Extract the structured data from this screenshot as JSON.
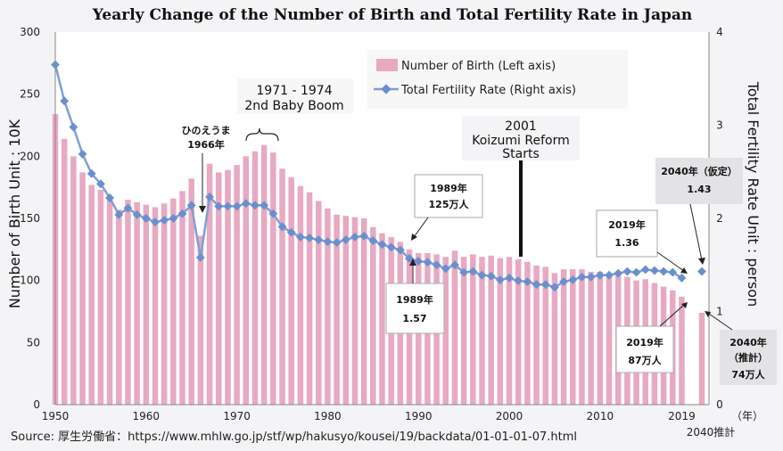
{
  "title": "Yearly Change of the Number of Birth and Total Fertility Rate in Japan",
  "source": "Source: 厚生労働省：https://www.mhlw.go.jp/stf/wp/hakusyo/kousei/19/backdata/01-01-01-07.html",
  "year_unit": "（年）",
  "legend": {
    "births": "Number of Birth (Left axis)",
    "tfr": "Total Fertility Rate (Right axis)"
  },
  "annotations": {
    "hinoeuma_1": "ひのえうま",
    "hinoeuma_2": "1966年",
    "boom_1": "1971 - 1974",
    "boom_2": "2nd Baby Boom",
    "koizumi_1": "2001",
    "koizumi_2": "Koizumi Reform",
    "koizumi_3": "Starts",
    "b1989_1": "1989年",
    "b1989_2": "125万人",
    "t1989_1": "1989年",
    "t1989_2": "1.57",
    "t2019_1": "2019年",
    "t2019_2": "1.36",
    "b2019_1": "2019年",
    "b2019_2": "87万人",
    "t2040_1": "2040年（仮定）",
    "t2040_2": "1.43",
    "b2040_1": "2040年",
    "b2040_2": "（推計）",
    "b2040_3": "74万人"
  },
  "chart_data": {
    "type": "bar",
    "xlabel": "",
    "ylabel": "Number of Birth  Unit : 10K",
    "y2label": "Total Fertility Rate  Unit : person",
    "ylim": [
      0,
      300
    ],
    "y2lim": [
      0,
      4
    ],
    "yticks": [
      0,
      50,
      100,
      150,
      200,
      250,
      300
    ],
    "y2ticks": [
      0,
      1,
      2,
      3,
      4
    ],
    "xticks": [
      "1950",
      "1960",
      "1970",
      "1980",
      "1990",
      "2000",
      "2010",
      "2019"
    ],
    "xtick_extra": "2040推計",
    "grid": false,
    "legend_position": "top-right",
    "colors": {
      "births": "#e8a9c2",
      "tfr": "#7f9fd2",
      "tfr_marker": "#6a8fcf"
    },
    "series": [
      {
        "name": "Number of Birth (Left axis)",
        "kind": "bar",
        "axis": "left",
        "x": [
          1950,
          1951,
          1952,
          1953,
          1954,
          1955,
          1956,
          1957,
          1958,
          1959,
          1960,
          1961,
          1962,
          1963,
          1964,
          1965,
          1966,
          1967,
          1968,
          1969,
          1970,
          1971,
          1972,
          1973,
          1974,
          1975,
          1976,
          1977,
          1978,
          1979,
          1980,
          1981,
          1982,
          1983,
          1984,
          1985,
          1986,
          1987,
          1988,
          1989,
          1990,
          1991,
          1992,
          1993,
          1994,
          1995,
          1996,
          1997,
          1998,
          1999,
          2000,
          2001,
          2002,
          2003,
          2004,
          2005,
          2006,
          2007,
          2008,
          2009,
          2010,
          2011,
          2012,
          2013,
          2014,
          2015,
          2016,
          2017,
          2018,
          2019,
          2040
        ],
        "values": [
          234,
          214,
          200,
          187,
          177,
          173,
          166,
          157,
          165,
          163,
          161,
          159,
          162,
          166,
          172,
          182,
          136,
          194,
          187,
          189,
          193,
          200,
          204,
          209,
          203,
          190,
          183,
          176,
          171,
          164,
          158,
          153,
          152,
          151,
          150,
          143,
          138,
          135,
          131,
          125,
          122,
          122,
          121,
          119,
          124,
          119,
          121,
          119,
          120,
          118,
          119,
          117,
          115,
          112,
          111,
          106,
          109,
          109,
          109,
          107,
          107,
          105,
          104,
          103,
          100,
          101,
          98,
          95,
          92,
          87,
          74
        ]
      },
      {
        "name": "Total Fertility Rate (Right axis)",
        "kind": "line",
        "axis": "right",
        "x": [
          1950,
          1951,
          1952,
          1953,
          1954,
          1955,
          1956,
          1957,
          1958,
          1959,
          1960,
          1961,
          1962,
          1963,
          1964,
          1965,
          1966,
          1967,
          1968,
          1969,
          1970,
          1971,
          1972,
          1973,
          1974,
          1975,
          1976,
          1977,
          1978,
          1979,
          1980,
          1981,
          1982,
          1983,
          1984,
          1985,
          1986,
          1987,
          1988,
          1989,
          1990,
          1991,
          1992,
          1993,
          1994,
          1995,
          1996,
          1997,
          1998,
          1999,
          2000,
          2001,
          2002,
          2003,
          2004,
          2005,
          2006,
          2007,
          2008,
          2009,
          2010,
          2011,
          2012,
          2013,
          2014,
          2015,
          2016,
          2017,
          2018,
          2019,
          2040
        ],
        "values": [
          3.65,
          3.26,
          2.98,
          2.69,
          2.48,
          2.37,
          2.22,
          2.04,
          2.11,
          2.04,
          2.0,
          1.96,
          1.98,
          2.0,
          2.05,
          2.14,
          1.58,
          2.23,
          2.13,
          2.13,
          2.13,
          2.16,
          2.14,
          2.14,
          2.05,
          1.91,
          1.85,
          1.8,
          1.79,
          1.77,
          1.75,
          1.74,
          1.77,
          1.8,
          1.81,
          1.76,
          1.72,
          1.69,
          1.66,
          1.57,
          1.54,
          1.53,
          1.5,
          1.46,
          1.5,
          1.42,
          1.43,
          1.39,
          1.38,
          1.34,
          1.36,
          1.33,
          1.32,
          1.29,
          1.29,
          1.26,
          1.32,
          1.34,
          1.37,
          1.37,
          1.39,
          1.39,
          1.41,
          1.43,
          1.42,
          1.45,
          1.44,
          1.43,
          1.42,
          1.36,
          1.43
        ]
      }
    ]
  }
}
